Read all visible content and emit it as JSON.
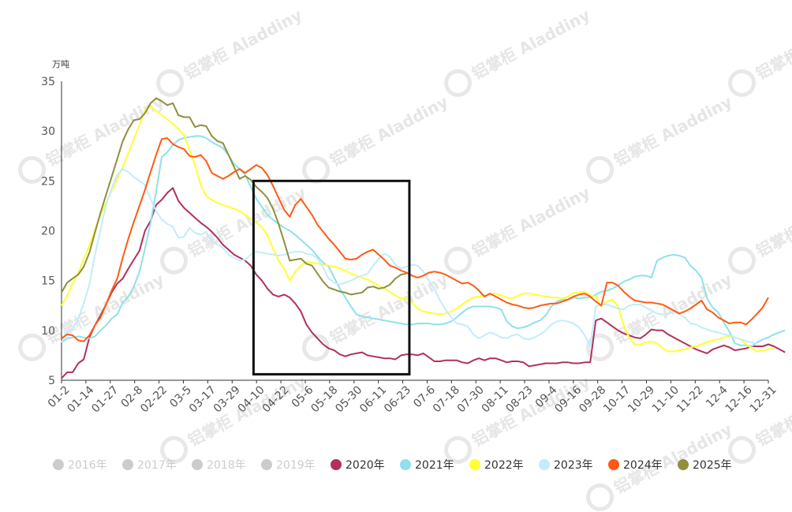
{
  "chart_data": {
    "type": "line",
    "unit_label": "万吨",
    "ylim": [
      5,
      35
    ],
    "yticks": [
      5,
      10,
      15,
      20,
      25,
      30,
      35
    ],
    "x_tick_labels": [
      "01-2",
      "01-14",
      "01-27",
      "02-8",
      "02-22",
      "03-5",
      "03-17",
      "03-29",
      "04-10",
      "04-22",
      "05-6",
      "05-18",
      "05-30",
      "06-11",
      "06-23",
      "07-6",
      "07-18",
      "07-30",
      "08-11",
      "08-23",
      "09-4",
      "09-16",
      "09-28",
      "10-17",
      "10-29",
      "11-10",
      "11-22",
      "12-4",
      "12-16",
      "12-31"
    ],
    "grid": false,
    "legend_position": "bottom",
    "watermark": "铝掌柜 Aladdiny",
    "highlight_box": {
      "x_start_index": 34.5,
      "x_end_index": 62.5,
      "y_top": 25,
      "y_bottom": 5.6
    },
    "legend": [
      {
        "name": "2016年",
        "color": "#cccccc",
        "active": false
      },
      {
        "name": "2017年",
        "color": "#cccccc",
        "active": false
      },
      {
        "name": "2018年",
        "color": "#cccccc",
        "active": false
      },
      {
        "name": "2019年",
        "color": "#cccccc",
        "active": false
      },
      {
        "name": "2020年",
        "color": "#b03060",
        "active": true
      },
      {
        "name": "2021年",
        "color": "#8fe0ea",
        "active": true
      },
      {
        "name": "2022年",
        "color": "#ffff33",
        "active": true
      },
      {
        "name": "2023年",
        "color": "#c2ecfa",
        "active": true
      },
      {
        "name": "2024年",
        "color": "#ff5a14",
        "active": true
      },
      {
        "name": "2025年",
        "color": "#8f8f3f",
        "active": true
      }
    ],
    "series": [
      {
        "name": "2020年",
        "color": "#b03060",
        "values": [
          5.2,
          5.8,
          5.8,
          6.7,
          7.1,
          9.3,
          10.5,
          11.5,
          12.6,
          13.8,
          14.7,
          15.2,
          16.2,
          17.1,
          18.0,
          20.0,
          21.0,
          22.6,
          23.1,
          23.8,
          24.3,
          23.0,
          22.3,
          21.8,
          21.3,
          20.8,
          20.4,
          19.9,
          19.3,
          18.6,
          18.1,
          17.6,
          17.3,
          17.0,
          16.5,
          15.6,
          15.0,
          14.2,
          13.6,
          13.4,
          13.6,
          13.3,
          12.7,
          11.9,
          10.6,
          9.8,
          9.2,
          8.6,
          8.2,
          8.0,
          7.6,
          7.4,
          7.6,
          7.7,
          7.8,
          7.5,
          7.4,
          7.3,
          7.2,
          7.2,
          7.1,
          7.5,
          7.6,
          7.6,
          7.5,
          7.7,
          7.3,
          6.9,
          6.9,
          7.0,
          7.0,
          7.0,
          6.8,
          6.7,
          7.0,
          7.2,
          7.0,
          7.2,
          7.2,
          7.0,
          6.8,
          6.9,
          6.9,
          6.8,
          6.4,
          6.5,
          6.6,
          6.7,
          6.7,
          6.7,
          6.8,
          6.8,
          6.7,
          6.7,
          6.8,
          6.8,
          11.0,
          11.2,
          10.8,
          10.4,
          10.0,
          9.7,
          9.5,
          9.3,
          9.2,
          9.6,
          10.1,
          10.0,
          10.0,
          9.6,
          9.3,
          9.0,
          8.7,
          8.4,
          8.1,
          7.9,
          7.7,
          8.1,
          8.3,
          8.5,
          8.3,
          8.0,
          8.1,
          8.2,
          8.4,
          8.4,
          8.4,
          8.6,
          8.4,
          8.1,
          7.8
        ]
      },
      {
        "name": "2021年",
        "color": "#8fe0ea",
        "values": [
          8.8,
          9.2,
          9.3,
          9.4,
          9.3,
          9.2,
          9.4,
          10.0,
          10.5,
          11.2,
          11.6,
          12.8,
          13.4,
          14.4,
          15.9,
          18.2,
          20.8,
          23.9,
          27.4,
          27.9,
          28.6,
          29.1,
          29.3,
          29.4,
          29.5,
          29.5,
          29.3,
          28.9,
          28.6,
          28.3,
          27.6,
          26.7,
          26.2,
          25.6,
          24.4,
          23.2,
          22.4,
          21.6,
          21.1,
          20.7,
          20.3,
          20.0,
          19.6,
          19.1,
          18.6,
          18.1,
          17.4,
          16.8,
          16.4,
          15.3,
          14.2,
          13.3,
          12.4,
          11.6,
          11.4,
          11.3,
          11.2,
          11.1,
          11.0,
          10.9,
          10.8,
          10.7,
          10.6,
          10.6,
          10.7,
          10.7,
          10.7,
          10.6,
          10.6,
          10.7,
          10.9,
          11.3,
          11.8,
          12.2,
          12.4,
          12.4,
          12.4,
          12.4,
          12.3,
          12.1,
          10.9,
          10.4,
          10.2,
          10.3,
          10.5,
          10.8,
          11.0,
          11.5,
          12.4,
          12.9,
          13.1,
          13.1,
          13.3,
          13.2,
          13.3,
          13.3,
          13.6,
          13.9,
          14.0,
          14.2,
          14.5,
          14.9,
          15.1,
          15.4,
          15.5,
          15.5,
          15.3,
          17.0,
          17.3,
          17.5,
          17.6,
          17.5,
          17.3,
          16.5,
          16.0,
          15.3,
          13.2,
          12.3,
          11.8,
          10.8,
          9.9,
          8.7,
          8.5,
          8.5,
          8.4,
          8.8,
          9.1,
          9.3,
          9.6,
          9.8,
          10.0
        ]
      },
      {
        "name": "2022年",
        "color": "#ffff33",
        "values": [
          12.5,
          13.5,
          14.7,
          15.8,
          17.2,
          18.5,
          20.1,
          21.6,
          22.8,
          24.0,
          25.2,
          26.4,
          27.8,
          29.2,
          30.6,
          32.1,
          32.5,
          32.0,
          31.6,
          31.2,
          30.7,
          30.2,
          29.6,
          28.1,
          26.6,
          24.6,
          23.5,
          23.1,
          22.8,
          22.6,
          22.4,
          22.2,
          22.0,
          21.6,
          21.2,
          20.8,
          20.4,
          19.5,
          18.2,
          17.0,
          16.2,
          15.0,
          15.9,
          16.5,
          16.9,
          16.8,
          16.7,
          16.6,
          16.5,
          16.4,
          16.2,
          16.0,
          15.7,
          15.5,
          15.3,
          15.1,
          14.8,
          14.5,
          14.2,
          13.9,
          13.5,
          13.2,
          13.2,
          12.8,
          12.2,
          11.9,
          11.8,
          11.7,
          11.6,
          11.7,
          11.9,
          12.2,
          12.6,
          13.0,
          13.3,
          13.4,
          13.5,
          13.6,
          13.7,
          13.5,
          13.3,
          13.2,
          13.5,
          13.7,
          13.7,
          13.6,
          13.5,
          13.4,
          13.3,
          13.3,
          13.2,
          13.4,
          13.8,
          13.8,
          13.9,
          13.5,
          13.4,
          12.4,
          12.9,
          13.1,
          12.4,
          10.5,
          9.3,
          8.6,
          8.6,
          8.8,
          8.9,
          8.7,
          8.2,
          7.9,
          7.9,
          8.0,
          8.1,
          8.3,
          8.4,
          8.6,
          8.8,
          9.0,
          9.1,
          9.3,
          9.4,
          9.3,
          9.1,
          8.6,
          8.2,
          7.9,
          8.0,
          8.1,
          8.2
        ]
      },
      {
        "name": "2023年",
        "color": "#c2ecfa",
        "values": [
          8.8,
          9.8,
          10.2,
          11.2,
          12.7,
          14.6,
          17.6,
          20.1,
          22.6,
          24.2,
          25.6,
          26.2,
          25.9,
          25.4,
          25.0,
          24.6,
          23.2,
          22.0,
          21.1,
          20.7,
          20.4,
          19.3,
          19.4,
          20.3,
          19.8,
          19.6,
          19.9,
          19.0,
          18.6,
          18.3,
          17.6,
          17.3,
          17.0,
          17.1,
          17.6,
          17.9,
          17.8,
          17.7,
          17.6,
          17.5,
          17.6,
          17.8,
          17.9,
          17.9,
          17.7,
          17.6,
          17.2,
          16.3,
          15.2,
          14.8,
          14.6,
          14.8,
          15.0,
          15.3,
          15.5,
          15.7,
          16.5,
          17.2,
          17.7,
          17.4,
          16.6,
          16.2,
          16.4,
          16.6,
          16.5,
          15.9,
          15.0,
          14.2,
          13.0,
          12.1,
          11.3,
          10.7,
          10.6,
          10.4,
          9.6,
          9.2,
          9.5,
          9.8,
          9.6,
          9.3,
          9.2,
          9.5,
          9.6,
          9.2,
          9.1,
          9.3,
          9.6,
          10.0,
          10.6,
          10.9,
          11.0,
          10.9,
          10.7,
          10.3,
          9.5,
          8.4,
          12.4,
          12.6,
          12.6,
          12.4,
          12.2,
          12.1,
          12.5,
          12.6,
          12.6,
          12.3,
          12.0,
          11.7,
          11.6,
          11.7,
          11.9,
          11.6,
          11.3,
          10.7,
          10.6,
          10.3,
          10.1,
          9.9,
          9.8,
          9.6,
          9.5,
          9.3,
          9.1,
          8.9,
          8.8,
          8.7
        ]
      },
      {
        "name": "2024年",
        "color": "#ff5a14",
        "values": [
          9.2,
          9.6,
          9.5,
          9.0,
          8.9,
          9.5,
          10.5,
          11.3,
          12.6,
          14.0,
          15.2,
          17.3,
          19.2,
          20.9,
          22.5,
          24.1,
          25.9,
          27.6,
          29.2,
          29.3,
          28.7,
          28.4,
          28.2,
          27.5,
          27.4,
          27.6,
          27.0,
          25.8,
          25.5,
          25.2,
          25.5,
          25.9,
          26.2,
          25.8,
          26.2,
          26.6,
          26.3,
          25.6,
          24.5,
          23.3,
          22.1,
          21.4,
          22.6,
          23.2,
          22.4,
          21.6,
          20.6,
          19.9,
          19.2,
          18.6,
          17.9,
          17.2,
          17.1,
          17.2,
          17.6,
          17.9,
          18.1,
          17.6,
          17.1,
          16.5,
          16.3,
          16.0,
          15.8,
          15.5,
          15.3,
          15.5,
          15.8,
          15.9,
          15.8,
          15.6,
          15.3,
          15.0,
          14.7,
          14.8,
          14.5,
          14.0,
          13.4,
          13.7,
          13.4,
          13.1,
          12.8,
          12.6,
          12.5,
          12.3,
          12.2,
          12.3,
          12.5,
          12.6,
          12.7,
          12.7,
          12.9,
          13.1,
          13.4,
          13.6,
          13.7,
          13.4,
          12.9,
          12.5,
          14.8,
          14.8,
          14.5,
          13.9,
          13.4,
          13.0,
          12.9,
          12.8,
          12.8,
          12.7,
          12.6,
          12.3,
          12.0,
          11.7,
          11.9,
          12.2,
          12.6,
          13.0,
          12.1,
          11.8,
          11.3,
          11.0,
          10.7,
          10.8,
          10.8,
          10.6,
          11.1,
          11.7,
          12.3,
          13.3
        ]
      },
      {
        "name": "2025年",
        "color": "#8f8f3f",
        "values": [
          13.8,
          14.8,
          15.2,
          15.6,
          16.4,
          17.8,
          19.8,
          21.8,
          23.6,
          25.4,
          27.2,
          29.0,
          30.2,
          31.1,
          31.2,
          31.8,
          32.8,
          33.3,
          33.0,
          32.6,
          32.8,
          31.6,
          31.4,
          31.4,
          30.4,
          30.6,
          30.5,
          29.5,
          29.0,
          28.8,
          27.6,
          26.4,
          25.2,
          25.5,
          25.1,
          24.4,
          23.9,
          23.3,
          22.2,
          20.7,
          18.9,
          17.0,
          17.1,
          17.2,
          16.7,
          16.5,
          15.7,
          14.9,
          14.3,
          14.1,
          13.9,
          13.8,
          13.6,
          13.7,
          13.8,
          14.3,
          14.4,
          14.2,
          14.3,
          14.6,
          15.2,
          15.6,
          15.7
        ]
      }
    ]
  }
}
